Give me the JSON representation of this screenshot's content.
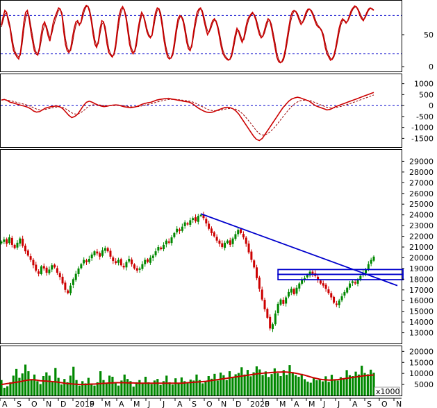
{
  "chart_data": [
    {
      "type": "line",
      "panel": "stochastic-oscillator",
      "ylim": [
        0,
        100
      ],
      "yticks": [
        "50",
        "0"
      ],
      "reference_lines": [
        80,
        20
      ],
      "colors": {
        "k_line": "#cc0000",
        "d_line": "#990000",
        "reference": "#0000cc"
      },
      "k_values": [
        65,
        78,
        88,
        85,
        70,
        60,
        40,
        25,
        20,
        15,
        12,
        22,
        45,
        70,
        85,
        88,
        75,
        55,
        40,
        25,
        20,
        18,
        30,
        50,
        65,
        70,
        60,
        48,
        40,
        55,
        70,
        78,
        85,
        92,
        90,
        80,
        55,
        35,
        25,
        22,
        28,
        45,
        60,
        70,
        72,
        65,
        70,
        85,
        92,
        96,
        94,
        85,
        70,
        50,
        35,
        30,
        40,
        60,
        72,
        70,
        55,
        35,
        22,
        18,
        15,
        20,
        35,
        60,
        80,
        90,
        94,
        88,
        75,
        55,
        35,
        25,
        20,
        25,
        40,
        60,
        75,
        85,
        80,
        68,
        55,
        48,
        45,
        50,
        70,
        85,
        92,
        90,
        78,
        60,
        40,
        25,
        15,
        12,
        14,
        22,
        40,
        60,
        75,
        80,
        78,
        70,
        55,
        38,
        28,
        25,
        35,
        55,
        72,
        85,
        90,
        92,
        85,
        72,
        60,
        50,
        55,
        65,
        72,
        75,
        70,
        60,
        45,
        30,
        20,
        15,
        12,
        10,
        12,
        20,
        35,
        50,
        60,
        55,
        45,
        38,
        45,
        60,
        72,
        78,
        82,
        85,
        80,
        72,
        60,
        50,
        45,
        48,
        58,
        68,
        75,
        72,
        60,
        45,
        30,
        15,
        8,
        6,
        8,
        15,
        28,
        45,
        62,
        78,
        86,
        88,
        86,
        80,
        72,
        66,
        70,
        78,
        86,
        90,
        90,
        86,
        80,
        72,
        65,
        62,
        60,
        55,
        45,
        30,
        20,
        15,
        10,
        12,
        18,
        30,
        45,
        60,
        70,
        75,
        72,
        68,
        72,
        80,
        88,
        92,
        95,
        93,
        88,
        80,
        75,
        72,
        78,
        85,
        90,
        92,
        90,
        88
      ],
      "d_values": [
        62,
        72,
        82,
        84,
        76,
        64,
        48,
        32,
        23,
        18,
        15,
        18,
        35,
        58,
        76,
        84,
        80,
        64,
        48,
        32,
        23,
        20,
        25,
        40,
        56,
        66,
        64,
        54,
        45,
        50,
        62,
        72,
        80,
        88,
        90,
        84,
        65,
        44,
        30,
        24,
        25,
        36,
        52,
        64,
        70,
        68,
        68,
        78,
        88,
        94,
        95,
        89,
        76,
        58,
        42,
        33,
        36,
        52,
        66,
        70,
        62,
        44,
        28,
        20,
        17,
        18,
        28,
        50,
        70,
        84,
        91,
        90,
        80,
        63,
        44,
        30,
        23,
        23,
        33,
        52,
        68,
        80,
        81,
        72,
        60,
        51,
        47,
        48,
        62,
        78,
        88,
        91,
        84,
        68,
        48,
        32,
        20,
        14,
        13,
        18,
        32,
        52,
        68,
        77,
        79,
        74,
        62,
        46,
        33,
        27,
        31,
        48,
        64,
        78,
        87,
        91,
        88,
        78,
        66,
        56,
        54,
        60,
        68,
        73,
        72,
        64,
        52,
        37,
        25,
        18,
        14,
        11,
        11,
        16,
        28,
        43,
        55,
        57,
        50,
        42,
        42,
        53,
        66,
        75,
        80,
        83,
        82,
        76,
        66,
        55,
        48,
        47,
        53,
        63,
        71,
        73,
        66,
        52,
        38,
        22,
        12,
        7,
        7,
        11,
        22,
        37,
        54,
        70,
        81,
        87,
        87,
        83,
        76,
        70,
        69,
        74,
        82,
        88,
        90,
        88,
        83,
        76,
        69,
        64,
        61,
        57,
        50,
        37,
        26,
        18,
        13,
        11,
        15,
        25,
        38,
        53,
        65,
        72,
        73,
        70,
        71,
        77,
        84,
        90,
        93,
        94,
        90,
        84,
        78,
        74,
        76,
        82,
        88,
        91,
        91,
        89
      ]
    },
    {
      "type": "line",
      "panel": "macd",
      "ylim": [
        -1900,
        1400
      ],
      "yticks": [
        "1000",
        "500",
        "0",
        "-500",
        "-1000",
        "-1500"
      ],
      "reference_lines": [
        0
      ],
      "colors": {
        "macd_line": "#cc0000",
        "signal_line": "#990000",
        "reference": "#0000cc"
      },
      "macd_values": [
        250,
        280,
        230,
        150,
        120,
        80,
        40,
        0,
        -30,
        -80,
        -150,
        -250,
        -300,
        -280,
        -200,
        -120,
        -80,
        -50,
        -30,
        -20,
        -60,
        -150,
        -300,
        -450,
        -550,
        -500,
        -400,
        -200,
        0,
        150,
        200,
        150,
        80,
        20,
        -20,
        -50,
        -30,
        0,
        20,
        30,
        20,
        -20,
        -60,
        -80,
        -100,
        -80,
        -50,
        0,
        60,
        100,
        130,
        150,
        200,
        250,
        280,
        300,
        320,
        330,
        300,
        280,
        250,
        230,
        200,
        180,
        160,
        100,
        0,
        -100,
        -180,
        -250,
        -300,
        -320,
        -300,
        -250,
        -200,
        -150,
        -100,
        -80,
        -100,
        -150,
        -250,
        -400,
        -600,
        -800,
        -1000,
        -1200,
        -1400,
        -1550,
        -1600,
        -1500,
        -1300,
        -1100,
        -900,
        -700,
        -500,
        -300,
        -100,
        50,
        200,
        300,
        350,
        380,
        350,
        300,
        250,
        200,
        100,
        0,
        -50,
        -100,
        -150,
        -200,
        -180,
        -120,
        -50,
        0,
        50,
        100,
        150,
        200,
        250,
        300,
        350,
        400,
        450,
        500,
        550,
        600
      ]
    },
    {
      "type": "candlestick",
      "panel": "price",
      "ylim": [
        12000,
        30000
      ],
      "yticks": [
        "29000",
        "28000",
        "27000",
        "26000",
        "25000",
        "24000",
        "23000",
        "22000",
        "21000",
        "20000",
        "19000",
        "18000",
        "17000",
        "16000",
        "15000",
        "14000",
        "13000"
      ],
      "colors": {
        "up": "#008800",
        "down": "#cc0000",
        "trendline": "#0000cc",
        "box": "#0000cc"
      },
      "close_values": [
        21500,
        21700,
        21300,
        21900,
        21200,
        20900,
        21400,
        21800,
        21100,
        20600,
        20200,
        19800,
        19300,
        18800,
        18500,
        19200,
        19000,
        18600,
        18900,
        19300,
        19100,
        18600,
        18200,
        17600,
        17000,
        16700,
        17400,
        18000,
        18500,
        19000,
        19400,
        19800,
        19600,
        19900,
        20300,
        20600,
        20400,
        20100,
        20700,
        20900,
        20600,
        20100,
        19700,
        19500,
        19800,
        19300,
        19100,
        19600,
        19900,
        19400,
        19000,
        18800,
        19000,
        19400,
        19800,
        19600,
        20000,
        20200,
        20600,
        21000,
        20800,
        21200,
        21600,
        21400,
        21900,
        22300,
        22700,
        22500,
        22900,
        23300,
        23100,
        23500,
        23700,
        23400,
        23900,
        24000,
        23700,
        23200,
        22700,
        22300,
        22000,
        21600,
        21300,
        21000,
        21400,
        21600,
        21200,
        21800,
        22200,
        22600,
        22300,
        21900,
        21300,
        20500,
        19800,
        19100,
        18100,
        17100,
        16100,
        15200,
        14400,
        13400,
        13800,
        14800,
        15700,
        16100,
        15700,
        16300,
        16800,
        17100,
        16600,
        17200,
        17600,
        17900,
        18100,
        18400,
        18700,
        18500,
        18300,
        17900,
        17600,
        17400,
        17100,
        16700,
        16300,
        15800,
        15600,
        16000,
        16400,
        16800,
        17200,
        17600,
        17800,
        17600,
        17900,
        18300,
        18600,
        18900,
        19400,
        19800,
        20100
      ]
    },
    {
      "type": "bar",
      "panel": "volume",
      "ylim": [
        0,
        22000
      ],
      "yticks": [
        "20000",
        "15000",
        "10000",
        "5000"
      ],
      "unit_label": "x1000",
      "colors": {
        "volume_bar": "#008800",
        "moving_average": "#cc0000"
      },
      "volume_values": [
        7000,
        3500,
        4200,
        6000,
        9000,
        12000,
        8000,
        10000,
        14000,
        11000,
        7000,
        9500,
        6500,
        5200,
        8800,
        10500,
        9000,
        6000,
        12500,
        8000,
        5000,
        7500,
        6000,
        9000,
        13000,
        7000,
        4500,
        6500,
        5500,
        8000,
        5000,
        4500,
        6000,
        11000,
        7000,
        5500,
        9000,
        8500,
        5500,
        4500,
        6800,
        9500,
        7500,
        6500,
        4000,
        6000,
        7000,
        5500,
        8500,
        6000,
        5200,
        6800,
        7500,
        4800,
        6500,
        9000,
        6000,
        5000,
        7800,
        5500,
        8200,
        6500,
        5800,
        7200,
        6800,
        9500,
        7000,
        5500,
        6300,
        8800,
        7600,
        9800,
        6800,
        10400,
        9200,
        7000,
        11000,
        8500,
        9600,
        10200,
        12800,
        9500,
        11600,
        8700,
        10500,
        13200,
        11800,
        9300,
        10900,
        8400,
        9700,
        12300,
        10100,
        8800,
        11500,
        9400,
        13800,
        10600,
        9200,
        8500,
        9800,
        7400,
        6300,
        5800,
        8200,
        6900,
        7500,
        6400,
        8700,
        6200,
        9400,
        7100,
        6800,
        8300,
        7800,
        11500,
        9200,
        8800,
        10800,
        9500,
        13500,
        10200,
        9600,
        11700,
        10300
      ],
      "ma_values": [
        5000,
        5200,
        5400,
        5600,
        5800,
        6000,
        6200,
        6500,
        6800,
        7000,
        7200,
        7100,
        6900,
        6700,
        6600,
        6500,
        6400,
        6300,
        6200,
        6000,
        5800,
        5600,
        5400,
        5300,
        5200,
        5100,
        5000,
        5000,
        5000,
        5100,
        5200,
        5200,
        5300,
        5400,
        5500,
        5600,
        5700,
        5700,
        5800,
        5800,
        5800,
        5800,
        5700,
        5700,
        5700,
        5600,
        5600,
        5600,
        5600,
        5600,
        5600,
        5600,
        5600,
        5600,
        5600,
        5600,
        5600,
        5600,
        5600,
        5600,
        5600,
        5700,
        5800,
        5900,
        6000,
        6100,
        6200,
        6300,
        6400,
        6600,
        6800,
        7000,
        7200,
        7400,
        7600,
        7800,
        8000,
        8200,
        8400,
        8600,
        8800,
        9000,
        9200,
        9400,
        9600,
        9800,
        10000,
        10100,
        10200,
        10300,
        10400,
        10500,
        10600,
        10600,
        10700,
        10600,
        10500,
        10300,
        10100,
        9800,
        9500,
        9200,
        8800,
        8400,
        8000,
        7700,
        7400,
        7200,
        7100,
        7000,
        7000,
        7100,
        7200,
        7400,
        7600,
        7800,
        8000,
        8200,
        8400,
        8600,
        8800,
        9000,
        9100,
        9200,
        9300
      ]
    },
    {
      "type": "axis",
      "panel": "time-axis",
      "x_labels": [
        "A",
        "S",
        "O",
        "N",
        "D",
        "2019",
        "F",
        "M",
        "A",
        "M",
        "J",
        "J",
        "A",
        "S",
        "O",
        "N",
        "D",
        "2020",
        "F",
        "M",
        "A",
        "M",
        "J",
        "J",
        "A",
        "S",
        "O",
        "N"
      ]
    }
  ]
}
